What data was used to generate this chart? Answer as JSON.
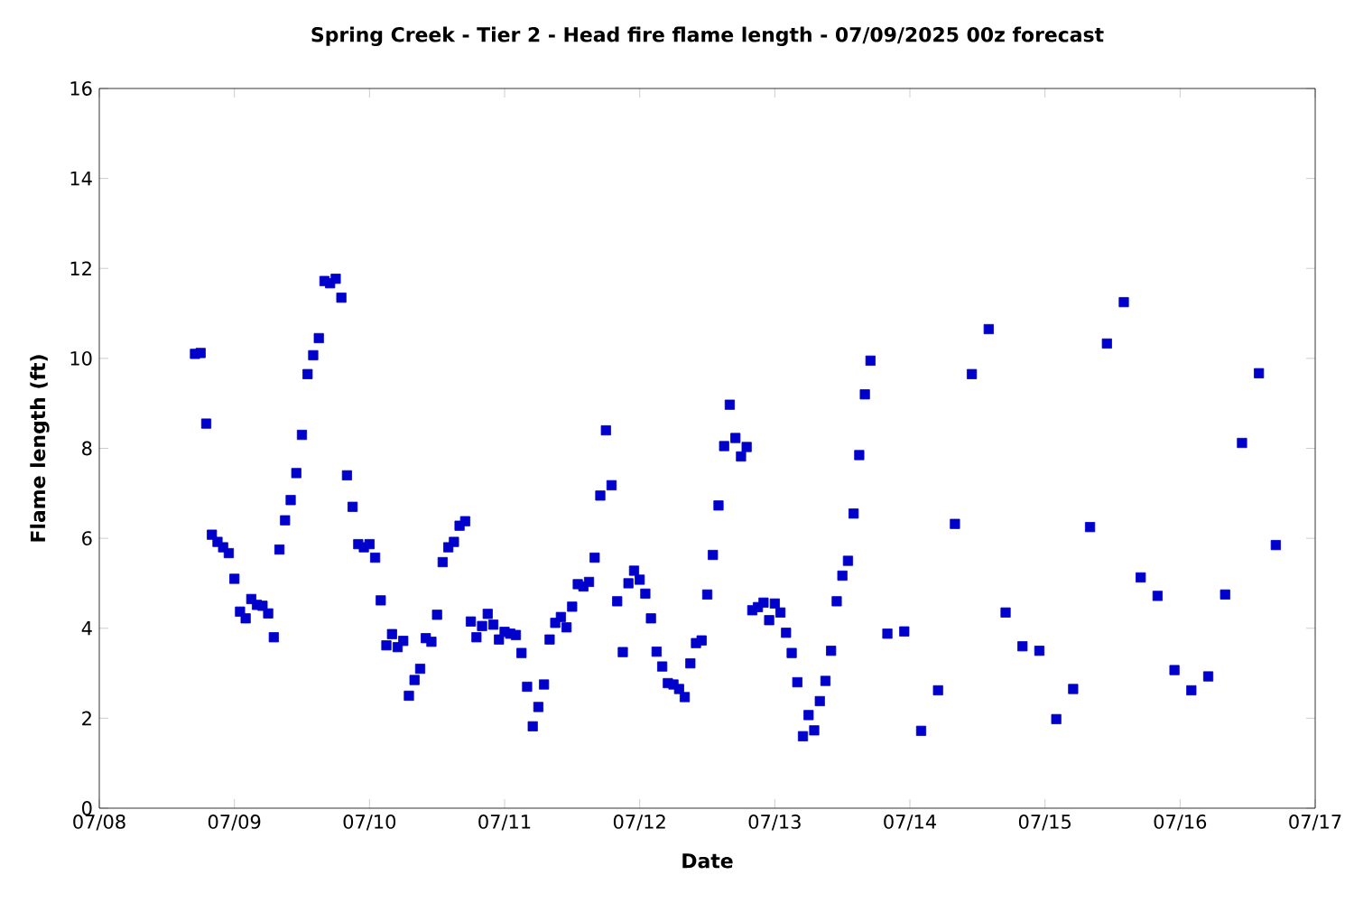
{
  "chart_data": {
    "type": "scatter",
    "title": "Spring Creek - Tier 2 - Head fire flame length - 07/09/2025 00z forecast",
    "xlabel": "Date",
    "ylabel": "Flame length (ft)",
    "xlim": [
      "2025-07-08",
      "2025-07-17"
    ],
    "xticks": [
      {
        "value": "2025-07-08",
        "label": "07/08"
      },
      {
        "value": "2025-07-09",
        "label": "07/09"
      },
      {
        "value": "2025-07-10",
        "label": "07/10"
      },
      {
        "value": "2025-07-11",
        "label": "07/11"
      },
      {
        "value": "2025-07-12",
        "label": "07/12"
      },
      {
        "value": "2025-07-13",
        "label": "07/13"
      },
      {
        "value": "2025-07-14",
        "label": "07/14"
      },
      {
        "value": "2025-07-15",
        "label": "07/15"
      },
      {
        "value": "2025-07-16",
        "label": "07/16"
      },
      {
        "value": "2025-07-17",
        "label": "07/17"
      }
    ],
    "ylim": [
      0,
      16
    ],
    "yticks": [
      0,
      2,
      4,
      6,
      8,
      10,
      12,
      14,
      16
    ],
    "marker": "square",
    "series": [
      {
        "color": "#0000cc",
        "x": [
          "2025-07-08T17:00",
          "2025-07-08T18:00",
          "2025-07-08T19:00",
          "2025-07-08T20:00",
          "2025-07-08T21:00",
          "2025-07-08T22:00",
          "2025-07-08T23:00",
          "2025-07-09T00:00",
          "2025-07-09T01:00",
          "2025-07-09T02:00",
          "2025-07-09T03:00",
          "2025-07-09T04:00",
          "2025-07-09T05:00",
          "2025-07-09T06:00",
          "2025-07-09T07:00",
          "2025-07-09T08:00",
          "2025-07-09T09:00",
          "2025-07-09T10:00",
          "2025-07-09T11:00",
          "2025-07-09T12:00",
          "2025-07-09T13:00",
          "2025-07-09T14:00",
          "2025-07-09T15:00",
          "2025-07-09T16:00",
          "2025-07-09T17:00",
          "2025-07-09T18:00",
          "2025-07-09T19:00",
          "2025-07-09T20:00",
          "2025-07-09T21:00",
          "2025-07-09T22:00",
          "2025-07-09T23:00",
          "2025-07-10T00:00",
          "2025-07-10T01:00",
          "2025-07-10T02:00",
          "2025-07-10T03:00",
          "2025-07-10T04:00",
          "2025-07-10T05:00",
          "2025-07-10T06:00",
          "2025-07-10T07:00",
          "2025-07-10T08:00",
          "2025-07-10T09:00",
          "2025-07-10T10:00",
          "2025-07-10T11:00",
          "2025-07-10T12:00",
          "2025-07-10T13:00",
          "2025-07-10T14:00",
          "2025-07-10T15:00",
          "2025-07-10T16:00",
          "2025-07-10T17:00",
          "2025-07-10T18:00",
          "2025-07-10T19:00",
          "2025-07-10T20:00",
          "2025-07-10T21:00",
          "2025-07-10T22:00",
          "2025-07-10T23:00",
          "2025-07-11T00:00",
          "2025-07-11T01:00",
          "2025-07-11T02:00",
          "2025-07-11T03:00",
          "2025-07-11T04:00",
          "2025-07-11T05:00",
          "2025-07-11T06:00",
          "2025-07-11T07:00",
          "2025-07-11T08:00",
          "2025-07-11T09:00",
          "2025-07-11T10:00",
          "2025-07-11T11:00",
          "2025-07-11T12:00",
          "2025-07-11T13:00",
          "2025-07-11T14:00",
          "2025-07-11T15:00",
          "2025-07-11T16:00",
          "2025-07-11T17:00",
          "2025-07-11T18:00",
          "2025-07-11T19:00",
          "2025-07-11T20:00",
          "2025-07-11T21:00",
          "2025-07-11T22:00",
          "2025-07-11T23:00",
          "2025-07-12T00:00",
          "2025-07-12T01:00",
          "2025-07-12T02:00",
          "2025-07-12T03:00",
          "2025-07-12T04:00",
          "2025-07-12T05:00",
          "2025-07-12T06:00",
          "2025-07-12T07:00",
          "2025-07-12T08:00",
          "2025-07-12T09:00",
          "2025-07-12T10:00",
          "2025-07-12T11:00",
          "2025-07-12T12:00",
          "2025-07-12T13:00",
          "2025-07-12T14:00",
          "2025-07-12T15:00",
          "2025-07-12T16:00",
          "2025-07-12T17:00",
          "2025-07-12T18:00",
          "2025-07-12T19:00",
          "2025-07-12T20:00",
          "2025-07-12T21:00",
          "2025-07-12T22:00",
          "2025-07-12T23:00",
          "2025-07-13T00:00",
          "2025-07-13T01:00",
          "2025-07-13T02:00",
          "2025-07-13T03:00",
          "2025-07-13T04:00",
          "2025-07-13T05:00",
          "2025-07-13T06:00",
          "2025-07-13T07:00",
          "2025-07-13T08:00",
          "2025-07-13T09:00",
          "2025-07-13T10:00",
          "2025-07-13T11:00",
          "2025-07-13T12:00",
          "2025-07-13T13:00",
          "2025-07-13T14:00",
          "2025-07-13T15:00",
          "2025-07-13T16:00",
          "2025-07-13T17:00",
          "2025-07-13T20:00",
          "2025-07-13T23:00",
          "2025-07-14T02:00",
          "2025-07-14T05:00",
          "2025-07-14T08:00",
          "2025-07-14T11:00",
          "2025-07-14T14:00",
          "2025-07-14T17:00",
          "2025-07-14T20:00",
          "2025-07-14T23:00",
          "2025-07-15T02:00",
          "2025-07-15T05:00",
          "2025-07-15T08:00",
          "2025-07-15T11:00",
          "2025-07-15T14:00",
          "2025-07-15T17:00",
          "2025-07-15T20:00",
          "2025-07-15T23:00",
          "2025-07-16T02:00",
          "2025-07-16T05:00",
          "2025-07-16T08:00",
          "2025-07-16T11:00",
          "2025-07-16T14:00",
          "2025-07-16T17:00"
        ],
        "values": [
          10.1,
          10.12,
          8.55,
          6.08,
          5.92,
          5.8,
          5.67,
          5.1,
          4.37,
          4.22,
          4.65,
          4.52,
          4.5,
          4.33,
          3.8,
          5.75,
          6.4,
          6.85,
          7.45,
          8.3,
          9.65,
          10.07,
          10.45,
          11.72,
          11.67,
          11.77,
          11.35,
          7.4,
          6.7,
          5.87,
          5.8,
          5.87,
          5.57,
          4.62,
          3.62,
          3.87,
          3.58,
          3.72,
          2.5,
          2.85,
          3.1,
          3.78,
          3.7,
          4.3,
          5.47,
          5.8,
          5.92,
          6.28,
          6.38,
          4.15,
          3.8,
          4.05,
          4.32,
          4.08,
          3.75,
          3.92,
          3.88,
          3.85,
          3.45,
          2.7,
          1.82,
          2.25,
          2.75,
          3.75,
          4.12,
          4.25,
          4.02,
          4.48,
          4.98,
          4.93,
          5.03,
          5.57,
          6.95,
          8.4,
          7.18,
          4.6,
          3.47,
          5.0,
          5.28,
          5.08,
          4.77,
          4.22,
          3.48,
          3.15,
          2.78,
          2.75,
          2.65,
          2.47,
          3.22,
          3.67,
          3.73,
          4.75,
          5.63,
          6.73,
          8.05,
          8.97,
          8.23,
          7.82,
          8.03,
          4.4,
          4.47,
          4.57,
          4.18,
          4.55,
          4.35,
          3.9,
          3.45,
          2.8,
          1.6,
          2.07,
          1.73,
          2.38,
          2.83,
          3.5,
          4.6,
          5.17,
          5.5,
          6.55,
          7.85,
          9.2,
          9.95,
          3.88,
          3.93,
          1.72,
          2.62,
          6.32,
          9.65,
          10.65,
          4.35,
          3.6,
          3.5,
          1.98,
          2.65,
          6.25,
          10.33,
          11.25,
          5.13,
          4.72,
          3.07,
          2.62,
          2.93,
          4.75,
          8.12,
          9.67,
          5.85
        ]
      }
    ]
  }
}
